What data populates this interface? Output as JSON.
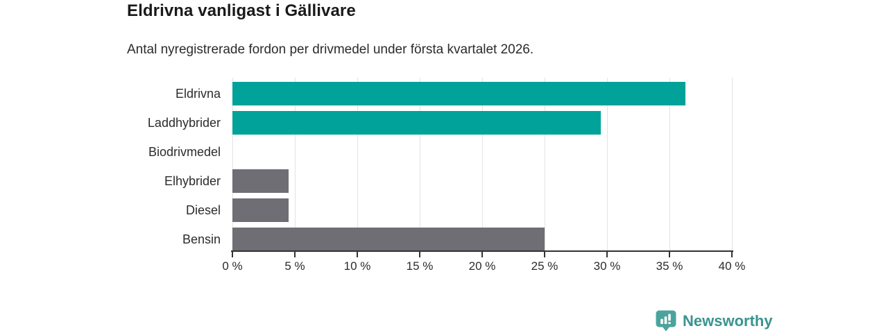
{
  "header": {
    "title": "Eldrivna vanligast i Gällivare",
    "subtitle": "Antal nyregistrerade fordon per drivmedel under första kvartalet 2026."
  },
  "chart_data": {
    "type": "bar",
    "orientation": "horizontal",
    "title": "Eldrivna vanligast i Gällivare",
    "subtitle": "Antal nyregistrerade fordon per drivmedel under första kvartalet 2026.",
    "categories": [
      "Eldrivna",
      "Laddhybrider",
      "Biodrivmedel",
      "Elhybrider",
      "Diesel",
      "Bensin"
    ],
    "values": [
      36.3,
      29.5,
      0,
      4.5,
      4.5,
      25
    ],
    "unit": "%",
    "xlabel": "",
    "ylabel": "",
    "xlim": [
      0,
      40
    ],
    "x_tick_values": [
      0,
      5,
      10,
      15,
      20,
      25,
      30,
      35,
      40
    ],
    "x_tick_labels": [
      "0 %",
      "5 %",
      "10 %",
      "15 %",
      "20 %",
      "25 %",
      "30 %",
      "35 %",
      "40 %"
    ],
    "grid": true,
    "legend": false,
    "bar_colors": [
      "#00a29a",
      "#00a29a",
      "#00a29a",
      "#6e6e74",
      "#6e6e74",
      "#6e6e74"
    ]
  },
  "colors": {
    "teal": "#00a29a",
    "gray": "#6e6e74",
    "gridline": "#e3e3e3",
    "axis": "#333333",
    "text": "#2b2b2b",
    "logo_teal": "#3a948e",
    "logo_icon_teal": "#4ba49c"
  },
  "footer": {
    "brand": "Newsworthy",
    "logo_icon": "bar-chart-speech-bubble-icon"
  }
}
